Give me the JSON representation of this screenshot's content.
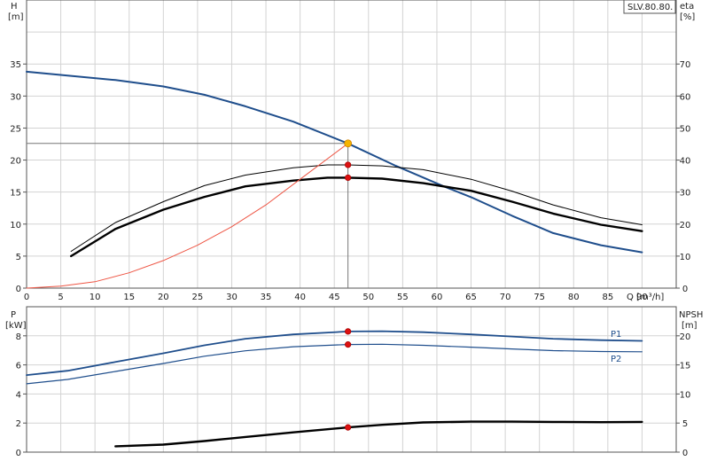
{
  "chart_data": [
    {
      "type": "line",
      "model_label": "SLV.80.80.",
      "left_axis": {
        "title": "H",
        "unit": "[m]",
        "ylim": [
          0,
          45
        ],
        "ticks": [
          0,
          5,
          10,
          15,
          20,
          25,
          30,
          35
        ]
      },
      "right_axis": {
        "title": "eta",
        "unit": "[%]",
        "ylim": [
          0,
          90
        ],
        "ticks": [
          0,
          10,
          20,
          30,
          40,
          50,
          60,
          70
        ]
      },
      "x_axis": {
        "label": "Q [m³/h]",
        "xlim": [
          0,
          95
        ],
        "ticks": [
          0,
          5,
          10,
          15,
          20,
          25,
          30,
          35,
          40,
          45,
          50,
          55,
          60,
          65,
          70,
          75,
          80,
          85,
          90
        ]
      },
      "grid": true,
      "duty_point": {
        "Q": 47,
        "H": 22.6
      },
      "series": [
        {
          "key": "H",
          "axis": "left",
          "color": "#1f4e8c",
          "points": [
            [
              0,
              33.8
            ],
            [
              6,
              33.2
            ],
            [
              13,
              32.5
            ],
            [
              20,
              31.5
            ],
            [
              26,
              30.2
            ],
            [
              32,
              28.4
            ],
            [
              39,
              26
            ],
            [
              47,
              22.6
            ],
            [
              54,
              19.1
            ],
            [
              61,
              15.9
            ],
            [
              65,
              14.2
            ],
            [
              71,
              11.3
            ],
            [
              77,
              8.6
            ],
            [
              84,
              6.7
            ],
            [
              90,
              5.6
            ]
          ]
        },
        {
          "key": "eta_thin",
          "axis": "right",
          "color": "#000000",
          "points": [
            [
              6.5,
              11.5
            ],
            [
              13,
              20.5
            ],
            [
              20,
              27
            ],
            [
              26,
              32
            ],
            [
              32,
              35.3
            ],
            [
              39,
              37.6
            ],
            [
              44,
              38.5
            ],
            [
              47,
              38.5
            ],
            [
              52,
              38.2
            ],
            [
              58,
              37
            ],
            [
              65,
              34
            ],
            [
              71,
              30.3
            ],
            [
              77,
              26
            ],
            [
              84,
              22
            ],
            [
              90,
              19.8
            ]
          ]
        },
        {
          "key": "eta_thick",
          "axis": "right",
          "color": "#000000",
          "points": [
            [
              6.5,
              10
            ],
            [
              13,
              18.5
            ],
            [
              20,
              24.5
            ],
            [
              26,
              28.5
            ],
            [
              32,
              31.8
            ],
            [
              39,
              33.6
            ],
            [
              44,
              34.5
            ],
            [
              47,
              34.5
            ],
            [
              52,
              34.2
            ],
            [
              58,
              32.8
            ],
            [
              65,
              30.4
            ],
            [
              71,
              27
            ],
            [
              77,
              23.3
            ],
            [
              84,
              19.8
            ],
            [
              90,
              17.8
            ]
          ]
        },
        {
          "key": "system_curve",
          "axis": "left",
          "color": "#ee5544",
          "points": [
            [
              0,
              0
            ],
            [
              5,
              0.3
            ],
            [
              10,
              1
            ],
            [
              15,
              2.4
            ],
            [
              20,
              4.3
            ],
            [
              25,
              6.7
            ],
            [
              30,
              9.6
            ],
            [
              35,
              13
            ],
            [
              40,
              17
            ],
            [
              47,
              22.6
            ]
          ]
        }
      ],
      "markers": [
        {
          "axis": "left",
          "Q": 47,
          "value": 22.6,
          "color": "#f5b400"
        },
        {
          "axis": "right",
          "Q": 47,
          "value": 38.5,
          "color": "#dd1111"
        },
        {
          "axis": "right",
          "Q": 47,
          "value": 34.5,
          "color": "#dd1111"
        }
      ]
    },
    {
      "type": "line",
      "left_axis": {
        "title": "P",
        "unit": "[kW]",
        "ylim": [
          0,
          10
        ],
        "ticks": [
          0,
          2,
          4,
          6,
          8
        ]
      },
      "right_axis": {
        "title": "NPSH",
        "unit": "[m]",
        "ylim": [
          0,
          25
        ],
        "ticks": [
          0,
          5,
          10,
          15,
          20
        ]
      },
      "x_axis": {
        "xlim": [
          0,
          95
        ]
      },
      "grid": true,
      "series": [
        {
          "name": "P1",
          "axis": "left",
          "color": "#1f4e8c",
          "points": [
            [
              0,
              5.3
            ],
            [
              6,
              5.6
            ],
            [
              13,
              6.2
            ],
            [
              20,
              6.8
            ],
            [
              26,
              7.35
            ],
            [
              32,
              7.8
            ],
            [
              39,
              8.1
            ],
            [
              47,
              8.3
            ],
            [
              52,
              8.32
            ],
            [
              58,
              8.25
            ],
            [
              65,
              8.1
            ],
            [
              71,
              7.95
            ],
            [
              77,
              7.8
            ],
            [
              84,
              7.7
            ],
            [
              90,
              7.65
            ]
          ]
        },
        {
          "name": "P2",
          "axis": "left",
          "color": "#1f4e8c",
          "points": [
            [
              0,
              4.7
            ],
            [
              6,
              5
            ],
            [
              13,
              5.55
            ],
            [
              20,
              6.1
            ],
            [
              26,
              6.6
            ],
            [
              32,
              6.97
            ],
            [
              39,
              7.25
            ],
            [
              47,
              7.4
            ],
            [
              52,
              7.42
            ],
            [
              58,
              7.35
            ],
            [
              65,
              7.22
            ],
            [
              71,
              7.1
            ],
            [
              77,
              6.98
            ],
            [
              84,
              6.92
            ],
            [
              90,
              6.9
            ]
          ]
        },
        {
          "key": "NPSH",
          "axis": "right",
          "color": "#000000",
          "points": [
            [
              13,
              1
            ],
            [
              20,
              1.3
            ],
            [
              26,
              1.9
            ],
            [
              32,
              2.6
            ],
            [
              39,
              3.4
            ],
            [
              47,
              4.25
            ],
            [
              52,
              4.7
            ],
            [
              58,
              5.1
            ],
            [
              65,
              5.25
            ],
            [
              71,
              5.25
            ],
            [
              77,
              5.2
            ],
            [
              84,
              5.15
            ],
            [
              90,
              5.2
            ]
          ]
        }
      ],
      "markers": [
        {
          "axis": "left",
          "Q": 47,
          "value": 8.3,
          "color": "#dd1111"
        },
        {
          "axis": "left",
          "Q": 47,
          "value": 7.4,
          "color": "#dd1111"
        },
        {
          "axis": "right",
          "Q": 47,
          "value": 4.25,
          "color": "#dd1111"
        }
      ]
    }
  ]
}
